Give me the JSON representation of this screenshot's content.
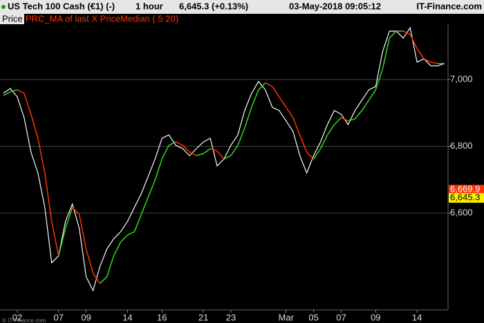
{
  "chart_data": {
    "type": "line",
    "header": {
      "instrument": "US Tech 100 Cash (€1) (-)",
      "timeframe": "1 hour",
      "quote": "6,645.3 (+0.13%)",
      "timestamp": "03-May-2018 09:05:12",
      "source": "IT-Finance.com"
    },
    "watermark": "© IT-Finance.com",
    "categories": [
      null,
      null,
      "02",
      null,
      null,
      null,
      null,
      null,
      "07",
      null,
      null,
      null,
      "09",
      null,
      null,
      null,
      null,
      null,
      "14",
      null,
      null,
      null,
      null,
      "16",
      null,
      null,
      null,
      null,
      null,
      "21",
      null,
      null,
      null,
      "23",
      null,
      null,
      null,
      null,
      null,
      null,
      null,
      "Mar",
      null,
      null,
      null,
      "05",
      null,
      null,
      null,
      "07",
      null,
      null,
      null,
      null,
      "09",
      null,
      null,
      null,
      null,
      null,
      "14",
      null,
      null,
      null,
      null
    ],
    "series": [
      {
        "name": "Price",
        "color": "#ffffff",
        "values": [
          6959,
          6973,
          6948,
          6886,
          6782,
          6720,
          6617,
          6451,
          6472,
          6575,
          6627,
          6554,
          6409,
          6368,
          6440,
          6492,
          6523,
          6544,
          6575,
          6617,
          6658,
          6710,
          6762,
          6824,
          6834,
          6803,
          6793,
          6772,
          6793,
          6813,
          6824,
          6741,
          6762,
          6803,
          6834,
          6907,
          6959,
          6994,
          6969,
          6917,
          6907,
          6876,
          6845,
          6772,
          6720,
          6772,
          6813,
          6865,
          6907,
          6896,
          6865,
          6907,
          6938,
          6969,
          6979,
          7083,
          7145,
          7145,
          7124,
          7155,
          7052,
          7062,
          7041,
          7041,
          7048
        ]
      },
      {
        "name": "PRC_MA of last X PriceMedian ( 5 20)",
        "color": "#ff3300",
        "up_color": "#33dd22",
        "values": [
          6952,
          6963,
          6969,
          6959,
          6896,
          6824,
          6720,
          6575,
          6472,
          6554,
          6617,
          6596,
          6492,
          6420,
          6389,
          6409,
          6472,
          6513,
          6534,
          6544,
          6596,
          6648,
          6699,
          6762,
          6803,
          6813,
          6803,
          6782,
          6772,
          6778,
          6793,
          6786,
          6762,
          6772,
          6803,
          6855,
          6917,
          6969,
          6990,
          6979,
          6948,
          6917,
          6886,
          6834,
          6782,
          6762,
          6793,
          6834,
          6865,
          6886,
          6876,
          6882,
          6907,
          6938,
          6969,
          7031,
          7124,
          7145,
          7145,
          7135,
          7093,
          7062,
          7052,
          7048,
          7048
        ]
      }
    ],
    "ylim": [
      6310,
      7176
    ],
    "yticks": [
      {
        "value": 6600,
        "label": "6,600"
      },
      {
        "value": 6800,
        "label": "6,800"
      },
      {
        "value": 7000,
        "label": "7,000"
      }
    ],
    "price_markers": [
      {
        "value": 6669.9,
        "label": "6,669.9",
        "color": "#ff3300",
        "text_color": "#ffffff"
      },
      {
        "value": 6645.3,
        "label": "6,645.3",
        "color": "#ffee00",
        "text_color": "#000000"
      }
    ],
    "grid": true
  }
}
